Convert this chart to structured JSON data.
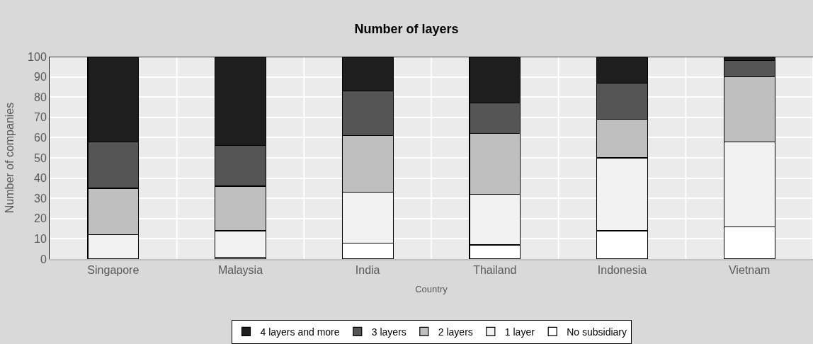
{
  "chart_data": {
    "type": "bar",
    "title": "Number of layers",
    "xlabel": "Country",
    "ylabel": "Number of companies",
    "categories": [
      "Singapore",
      "Malaysia",
      "India",
      "Thailand",
      "Indonesia",
      "Vietnam"
    ],
    "stacked": true,
    "ylim": [
      0,
      100
    ],
    "yticks": [
      0,
      10,
      20,
      30,
      40,
      50,
      60,
      70,
      80,
      90,
      100
    ],
    "grid": true,
    "legend": "bottom",
    "series": [
      {
        "name": "No subsidiary",
        "color": "#ffffff",
        "values": [
          0,
          1,
          8,
          7,
          14,
          16
        ]
      },
      {
        "name": "1 layer",
        "color": "#f2f2f2",
        "values": [
          12,
          13,
          25,
          25,
          36,
          42
        ]
      },
      {
        "name": "2 layers",
        "color": "#bfbfbf",
        "values": [
          23,
          22,
          28,
          30,
          19,
          32
        ]
      },
      {
        "name": "3 layers",
        "color": "#555555",
        "values": [
          23,
          20,
          22,
          15,
          18,
          8
        ]
      },
      {
        "name": "4 layers and more",
        "color": "#1e1e1e",
        "values": [
          42,
          44,
          17,
          23,
          13,
          2
        ]
      }
    ]
  }
}
